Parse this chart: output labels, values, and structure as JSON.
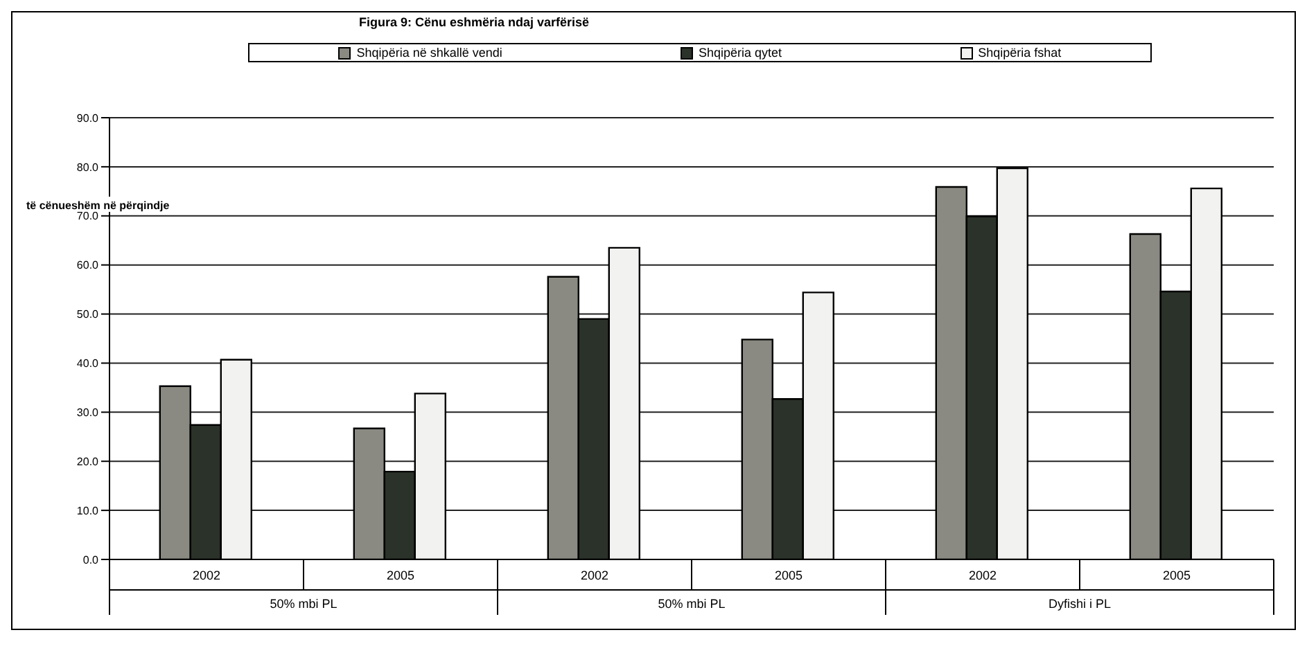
{
  "chart_data": {
    "type": "bar",
    "title": "Figura 9: Cënu   eshmëria ndaj varfërisë",
    "ylabel": "të cënueshëm në përqindje",
    "categories": [
      "2002",
      "2005",
      "2002",
      "2005",
      "2002",
      "2005"
    ],
    "series": [
      {
        "name": "Shqipëria në shkallë vendi",
        "color": "#8a8a82",
        "values": [
          35.3,
          26.7,
          57.6,
          44.8,
          75.9,
          66.3
        ]
      },
      {
        "name": "Shqipëria qytet",
        "color": "#2b3229",
        "values": [
          27.4,
          17.9,
          49.0,
          32.7,
          69.9,
          54.6
        ]
      },
      {
        "name": "Shqipëria fshat",
        "color": "#f2f2f0",
        "values": [
          40.7,
          33.8,
          63.5,
          54.4,
          79.7,
          75.6
        ]
      }
    ],
    "annotations": [
      "50% mbi PL",
      "50% mbi PL",
      "Dyfishi i PL"
    ],
    "ylim": [
      0,
      90
    ],
    "yticks": [
      {
        "value": 0,
        "label": "0.0"
      },
      {
        "value": 10,
        "label": "10.0"
      },
      {
        "value": 20,
        "label": "20.0"
      },
      {
        "value": 30,
        "label": "30.0"
      },
      {
        "value": 40,
        "label": "40.0"
      },
      {
        "value": 50,
        "label": "50.0"
      },
      {
        "value": 60,
        "label": "60.0"
      },
      {
        "value": 70,
        "label": "70.0"
      },
      {
        "value": 80,
        "label": "80.0"
      },
      {
        "value": 90,
        "label": "90.0"
      }
    ],
    "grid": "y",
    "legend": "top"
  }
}
